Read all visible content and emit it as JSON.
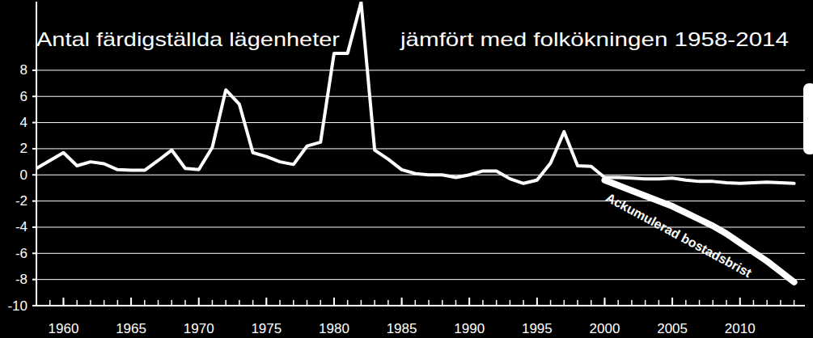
{
  "chart_data": {
    "type": "line",
    "title": "Antal färdigställda lägenheter jämfört med folkökningen 1958-2014",
    "x": [
      1958,
      1959,
      1960,
      1961,
      1962,
      1963,
      1964,
      1965,
      1966,
      1967,
      1968,
      1969,
      1970,
      1971,
      1972,
      1973,
      1974,
      1975,
      1976,
      1977,
      1978,
      1979,
      1980,
      1981,
      1982,
      1983,
      1984,
      1985,
      1986,
      1987,
      1988,
      1989,
      1990,
      1991,
      1992,
      1993,
      1994,
      1995,
      1996,
      1997,
      1998,
      1999,
      2000,
      2001,
      2002,
      2003,
      2004,
      2005,
      2006,
      2007,
      2008,
      2009,
      2010,
      2011,
      2012,
      2013,
      2014
    ],
    "series": [
      {
        "color": "#ffffff",
        "values": [
          0.5,
          1.1,
          1.7,
          0.7,
          1.0,
          0.85,
          0.4,
          0.35,
          0.35,
          1.1,
          1.9,
          0.5,
          0.4,
          2.1,
          6.5,
          5.4,
          1.7,
          1.4,
          1.0,
          0.8,
          2.2,
          2.5,
          9.3,
          9.3,
          13.2,
          1.9,
          1.2,
          0.4,
          0.1,
          0.0,
          0.0,
          -0.2,
          0.0,
          0.3,
          0.3,
          -0.3,
          -0.65,
          -0.4,
          0.9,
          3.3,
          0.7,
          0.65,
          -0.2,
          -0.2,
          -0.25,
          -0.3,
          -0.3,
          -0.25,
          -0.4,
          -0.5,
          -0.5,
          -0.6,
          -0.65,
          -0.6,
          -0.55,
          -0.6,
          -0.65
        ]
      },
      {
        "name": "Ackumulerad bostadsbrist",
        "color": "#ffffff",
        "values": [
          null,
          null,
          null,
          null,
          null,
          null,
          null,
          null,
          null,
          null,
          null,
          null,
          null,
          null,
          null,
          null,
          null,
          null,
          null,
          null,
          null,
          null,
          null,
          null,
          null,
          null,
          null,
          null,
          null,
          null,
          null,
          null,
          null,
          null,
          null,
          null,
          null,
          null,
          null,
          null,
          null,
          null,
          -0.4,
          -0.8,
          -1.2,
          -1.6,
          -2.0,
          -2.4,
          -2.9,
          -3.4,
          -3.9,
          -4.5,
          -5.2,
          -5.9,
          -6.6,
          -7.4,
          -8.2
        ]
      }
    ],
    "xlim": [
      1958,
      2014.8
    ],
    "xticks": [
      1960,
      1965,
      1970,
      1975,
      1980,
      1985,
      1990,
      1995,
      2000,
      2005,
      2010
    ],
    "ylim": [
      -10,
      13.25
    ],
    "yticks": [
      -10,
      -8,
      -6,
      -4,
      -2,
      0,
      2,
      4,
      6,
      8
    ],
    "grid": true
  }
}
